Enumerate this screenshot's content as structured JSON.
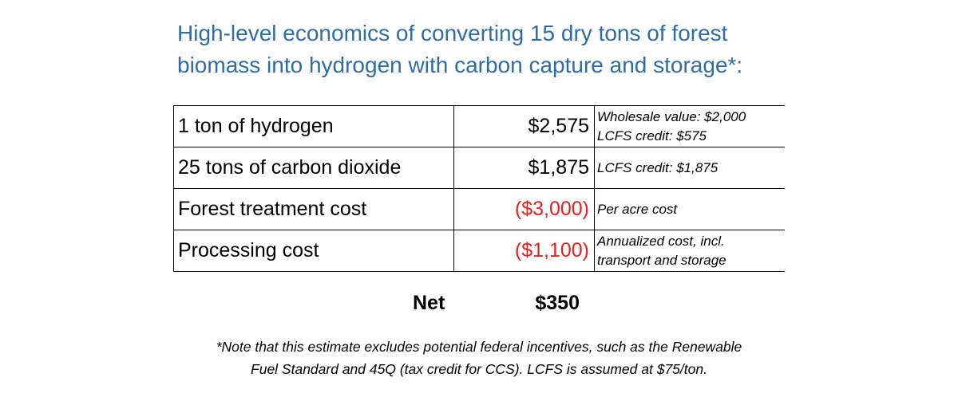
{
  "title": {
    "line1": "High-level economics of converting 15 dry tons of forest",
    "line2": "biomass into hydrogen with carbon capture and storage*:"
  },
  "rows": [
    {
      "label": "1 ton of hydrogen",
      "value": "$2,575",
      "negative": false,
      "note_lines": [
        "Wholesale value: $2,000",
        "LCFS credit: $575"
      ]
    },
    {
      "label": "25 tons of carbon dioxide",
      "value": "$1,875",
      "negative": false,
      "note_lines": [
        "LCFS credit: $1,875"
      ]
    },
    {
      "label": "Forest treatment cost",
      "value": "($3,000)",
      "negative": true,
      "note_lines": [
        "Per acre cost"
      ]
    },
    {
      "label": "Processing cost",
      "value": "($1,100)",
      "negative": true,
      "note_lines": [
        "Annualized cost, incl.",
        "transport and storage"
      ]
    }
  ],
  "net": {
    "label": "Net",
    "value": "$350"
  },
  "footnote": {
    "line1": "*Note that this estimate excludes potential federal incentives, such as the Renewable",
    "line2": "Fuel Standard and 45Q (tax credit for CCS). LCFS is assumed at $75/ton."
  },
  "colors": {
    "title": "#2e6ca8",
    "negative": "#e8201f"
  }
}
